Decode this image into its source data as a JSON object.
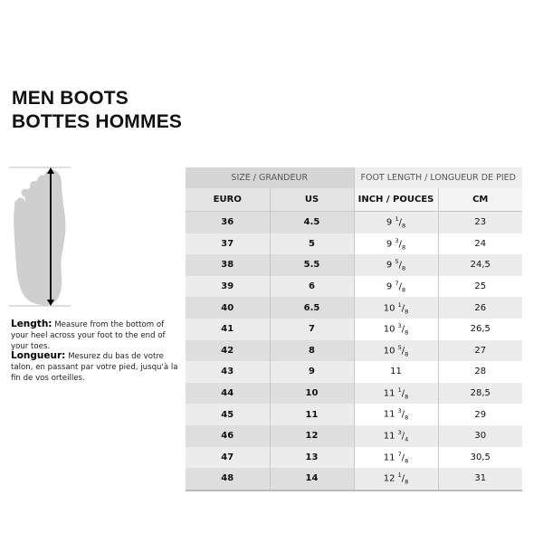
{
  "title": {
    "line1": "MEN BOOTS",
    "line2": "BOTTES HOMMES"
  },
  "instructions": {
    "en_label": "Length:",
    "en_text": " Measure from the bottom of your heel across your foot to the end of your toes.",
    "fr_label": "Longueur:",
    "fr_text": " Mesurez du bas de votre talon, en passant par votre pied, jusqu'à la fin de vos orteilles."
  },
  "table": {
    "group_headers": [
      "SIZE / GRANDEUR",
      "FOOT LENGTH / LONGUEUR DE PIED"
    ],
    "columns": [
      "EURO",
      "US",
      "INCH / POUCES",
      "CM"
    ],
    "rows": [
      {
        "euro": "36",
        "us": "4.5",
        "inch": {
          "whole": "9",
          "num": "1",
          "den": "8"
        },
        "cm": "23"
      },
      {
        "euro": "37",
        "us": "5",
        "inch": {
          "whole": "9",
          "num": "3",
          "den": "8"
        },
        "cm": "24"
      },
      {
        "euro": "38",
        "us": "5.5",
        "inch": {
          "whole": "9",
          "num": "5",
          "den": "8"
        },
        "cm": "24,5"
      },
      {
        "euro": "39",
        "us": "6",
        "inch": {
          "whole": "9",
          "num": "7",
          "den": "8"
        },
        "cm": "25"
      },
      {
        "euro": "40",
        "us": "6.5",
        "inch": {
          "whole": "10",
          "num": "1",
          "den": "8"
        },
        "cm": "26"
      },
      {
        "euro": "41",
        "us": "7",
        "inch": {
          "whole": "10",
          "num": "3",
          "den": "8"
        },
        "cm": "26,5"
      },
      {
        "euro": "42",
        "us": "8",
        "inch": {
          "whole": "10",
          "num": "5",
          "den": "8"
        },
        "cm": "27"
      },
      {
        "euro": "43",
        "us": "9",
        "inch": {
          "whole": "11",
          "num": "",
          "den": ""
        },
        "cm": "28"
      },
      {
        "euro": "44",
        "us": "10",
        "inch": {
          "whole": "11",
          "num": "1",
          "den": "8"
        },
        "cm": "28,5"
      },
      {
        "euro": "45",
        "us": "11",
        "inch": {
          "whole": "11",
          "num": "3",
          "den": "8"
        },
        "cm": "29"
      },
      {
        "euro": "46",
        "us": "12",
        "inch": {
          "whole": "11",
          "num": "3",
          "den": "4"
        },
        "cm": "30"
      },
      {
        "euro": "47",
        "us": "13",
        "inch": {
          "whole": "11",
          "num": "7",
          "den": "8"
        },
        "cm": "30,5"
      },
      {
        "euro": "48",
        "us": "14",
        "inch": {
          "whole": "12",
          "num": "1",
          "den": "8"
        },
        "cm": "31"
      }
    ]
  }
}
